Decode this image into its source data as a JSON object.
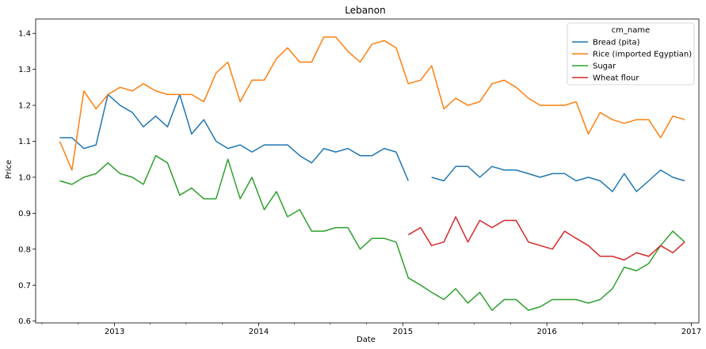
{
  "chart_data": {
    "type": "line",
    "title": "Lebanon",
    "xlabel": "Date",
    "ylabel": "Price",
    "x_start": "2012-08",
    "x_range": [
      "2012-06-15",
      "2017-01-20"
    ],
    "ylim": [
      0.595,
      1.44
    ],
    "x_ticks": [
      {
        "label": "2013",
        "date": "2013-01-01"
      },
      {
        "label": "2014",
        "date": "2014-01-01"
      },
      {
        "label": "2015",
        "date": "2015-01-01"
      },
      {
        "label": "2016",
        "date": "2016-01-01"
      },
      {
        "label": "2017",
        "date": "2017-01-01"
      }
    ],
    "y_ticks": [
      0.6,
      0.7,
      0.8,
      0.9,
      1.0,
      1.1,
      1.2,
      1.3,
      1.4
    ],
    "y_tick_labels": [
      "0.6",
      "0.7",
      "0.8",
      "0.9",
      "1.0",
      "1.1",
      "1.2",
      "1.3",
      "1.4"
    ],
    "grid": false,
    "legend": {
      "title": "cm_name",
      "placement": "top-right"
    },
    "series": [
      {
        "name": "Bread (pita)",
        "color": "#1f77b4",
        "values": [
          1.11,
          1.11,
          1.08,
          1.09,
          1.23,
          1.2,
          1.18,
          1.14,
          1.17,
          1.14,
          1.23,
          1.12,
          1.16,
          1.1,
          1.08,
          1.09,
          1.07,
          1.09,
          1.09,
          1.09,
          1.06,
          1.04,
          1.08,
          1.07,
          1.08,
          1.06,
          1.06,
          1.08,
          1.07,
          0.99,
          null,
          1.0,
          0.99,
          1.03,
          1.03,
          1.0,
          1.03,
          1.02,
          1.02,
          1.01,
          1.0,
          1.01,
          1.01,
          0.99,
          1.0,
          0.99,
          0.96,
          1.01,
          0.96,
          0.99,
          1.02,
          1.0,
          0.99
        ]
      },
      {
        "name": "Rice (imported Egyptian)",
        "color": "#ff7f0e",
        "values": [
          1.1,
          1.02,
          1.24,
          1.19,
          1.23,
          1.25,
          1.24,
          1.26,
          1.24,
          1.23,
          1.23,
          1.23,
          1.21,
          1.29,
          1.32,
          1.21,
          1.27,
          1.27,
          1.33,
          1.36,
          1.32,
          1.32,
          1.39,
          1.39,
          1.35,
          1.32,
          1.37,
          1.38,
          1.36,
          1.26,
          1.27,
          1.31,
          1.19,
          1.22,
          1.2,
          1.21,
          1.26,
          1.27,
          1.25,
          1.22,
          1.2,
          1.2,
          1.2,
          1.21,
          1.12,
          1.18,
          1.16,
          1.15,
          1.16,
          1.16,
          1.11,
          1.17,
          1.16
        ]
      },
      {
        "name": "Sugar",
        "color": "#2ca02c",
        "values": [
          0.99,
          0.98,
          1.0,
          1.01,
          1.04,
          1.01,
          1.0,
          0.98,
          1.06,
          1.04,
          0.95,
          0.97,
          0.94,
          0.94,
          1.05,
          0.94,
          1.0,
          0.91,
          0.96,
          0.89,
          0.91,
          0.85,
          0.85,
          0.86,
          0.86,
          0.8,
          0.83,
          0.83,
          0.82,
          0.72,
          0.7,
          0.68,
          0.66,
          0.69,
          0.65,
          0.68,
          0.63,
          0.66,
          0.66,
          0.63,
          0.64,
          0.66,
          0.66,
          0.66,
          0.65,
          0.66,
          0.69,
          0.75,
          0.74,
          0.76,
          0.81,
          0.85,
          0.82
        ]
      },
      {
        "name": "Wheat flour",
        "color": "#d62728",
        "values": [
          null,
          null,
          null,
          null,
          null,
          null,
          null,
          null,
          null,
          null,
          null,
          null,
          null,
          null,
          null,
          null,
          null,
          null,
          null,
          null,
          null,
          null,
          null,
          null,
          null,
          null,
          null,
          null,
          null,
          0.84,
          0.86,
          0.81,
          0.82,
          0.89,
          0.82,
          0.88,
          0.86,
          0.88,
          0.88,
          0.82,
          0.81,
          0.8,
          0.85,
          0.83,
          0.81,
          0.78,
          0.78,
          0.77,
          0.79,
          0.78,
          0.81,
          0.79,
          0.82
        ]
      }
    ]
  }
}
